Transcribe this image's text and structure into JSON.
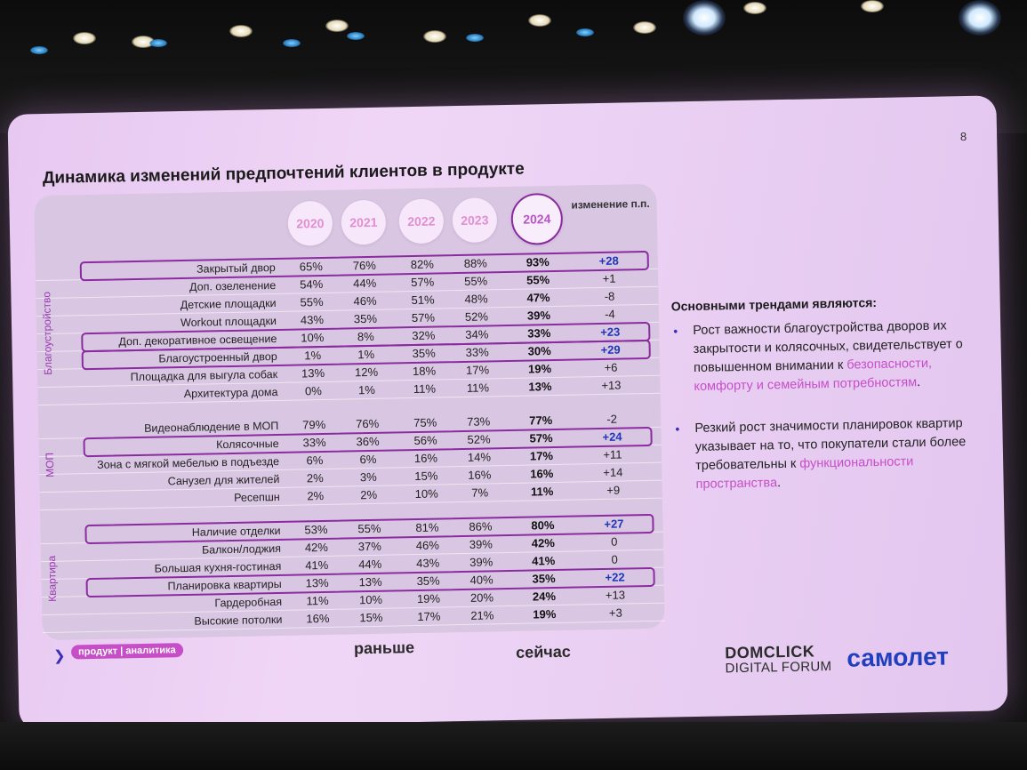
{
  "slide": {
    "page_number": "8",
    "title": "Динамика изменений предпочтений клиентов в продукте",
    "years": [
      "2020",
      "2021",
      "2022",
      "2023",
      "2024"
    ],
    "change_header": "изменение п.п.",
    "groups": [
      {
        "name": "Благоустройство",
        "rows": [
          {
            "label": "Закрытый двор",
            "values": [
              "65%",
              "76%",
              "82%",
              "88%",
              "93%"
            ],
            "change": "+28",
            "highlight": true
          },
          {
            "label": "Доп. озеленение",
            "values": [
              "54%",
              "44%",
              "57%",
              "55%",
              "55%"
            ],
            "change": "+1",
            "highlight": false
          },
          {
            "label": "Детские площадки",
            "values": [
              "55%",
              "46%",
              "51%",
              "48%",
              "47%"
            ],
            "change": "-8",
            "highlight": false
          },
          {
            "label": "Workout площадки",
            "values": [
              "43%",
              "35%",
              "57%",
              "52%",
              "39%"
            ],
            "change": "-4",
            "highlight": false
          },
          {
            "label": "Доп. декоративное освещение",
            "values": [
              "10%",
              "8%",
              "32%",
              "34%",
              "33%"
            ],
            "change": "+23",
            "highlight": true
          },
          {
            "label": "Благоустроенный двор",
            "values": [
              "1%",
              "1%",
              "35%",
              "33%",
              "30%"
            ],
            "change": "+29",
            "highlight": true
          },
          {
            "label": "Площадка для выгула собак",
            "values": [
              "13%",
              "12%",
              "18%",
              "17%",
              "19%"
            ],
            "change": "+6",
            "highlight": false
          },
          {
            "label": "Архитектура дома",
            "values": [
              "0%",
              "1%",
              "11%",
              "11%",
              "13%"
            ],
            "change": "+13",
            "highlight": false
          }
        ]
      },
      {
        "name": "МОП",
        "rows": [
          {
            "label": "Видеонаблюдение в МОП",
            "values": [
              "79%",
              "76%",
              "75%",
              "73%",
              "77%"
            ],
            "change": "-2",
            "highlight": false
          },
          {
            "label": "Колясочные",
            "values": [
              "33%",
              "36%",
              "56%",
              "52%",
              "57%"
            ],
            "change": "+24",
            "highlight": true
          },
          {
            "label": "Зона с мягкой мебелью в подъезде",
            "values": [
              "6%",
              "6%",
              "16%",
              "14%",
              "17%"
            ],
            "change": "+11",
            "highlight": false
          },
          {
            "label": "Санузел для жителей",
            "values": [
              "2%",
              "3%",
              "15%",
              "16%",
              "16%"
            ],
            "change": "+14",
            "highlight": false
          },
          {
            "label": "Ресепшн",
            "values": [
              "2%",
              "2%",
              "10%",
              "7%",
              "11%"
            ],
            "change": "+9",
            "highlight": false
          }
        ]
      },
      {
        "name": "Квартира",
        "rows": [
          {
            "label": "Наличие отделки",
            "values": [
              "53%",
              "55%",
              "81%",
              "86%",
              "80%"
            ],
            "change": "+27",
            "highlight": true
          },
          {
            "label": "Балкон/лоджия",
            "values": [
              "42%",
              "37%",
              "46%",
              "39%",
              "42%"
            ],
            "change": "0",
            "highlight": false
          },
          {
            "label": "Большая кухня-гостиная",
            "values": [
              "41%",
              "44%",
              "43%",
              "39%",
              "41%"
            ],
            "change": "0",
            "highlight": false
          },
          {
            "label": "Планировка квартиры",
            "values": [
              "13%",
              "13%",
              "35%",
              "40%",
              "35%"
            ],
            "change": "+22",
            "highlight": true
          },
          {
            "label": "Гардеробная",
            "values": [
              "11%",
              "10%",
              "19%",
              "20%",
              "24%"
            ],
            "change": "+13",
            "highlight": false
          },
          {
            "label": "Высокие потолки",
            "values": [
              "16%",
              "15%",
              "17%",
              "21%",
              "19%"
            ],
            "change": "+3",
            "highlight": false
          }
        ]
      }
    ],
    "tag": "продукт | аналитика",
    "before_label": "раньше",
    "now_label": "сейчас",
    "trends": {
      "title": "Основными трендами являются:",
      "bullet1_text": "Рост важности благоустройства дворов их закрытости и колясочных, свидетельствует о повышенном внимании к ",
      "bullet1_highlight": "безопасности, комфорту и семейным потребностям",
      "bullet1_end": ".",
      "bullet2_text": "Резкий рост значимости планировок квартир указывает на то, что покупатели стали более требовательны к ",
      "bullet2_highlight": "функциональности пространства",
      "bullet2_end": "."
    },
    "logos": {
      "domclick_line1": "DOMCLICK",
      "domclick_line2": "DIGITAL FORUM",
      "samolet": "самолет"
    }
  },
  "colors": {
    "accent_purple": "#8a2b9f",
    "pink": "#c64fc7",
    "blue_change": "#1d37b8",
    "slide_bg": "#ecd0f4"
  }
}
